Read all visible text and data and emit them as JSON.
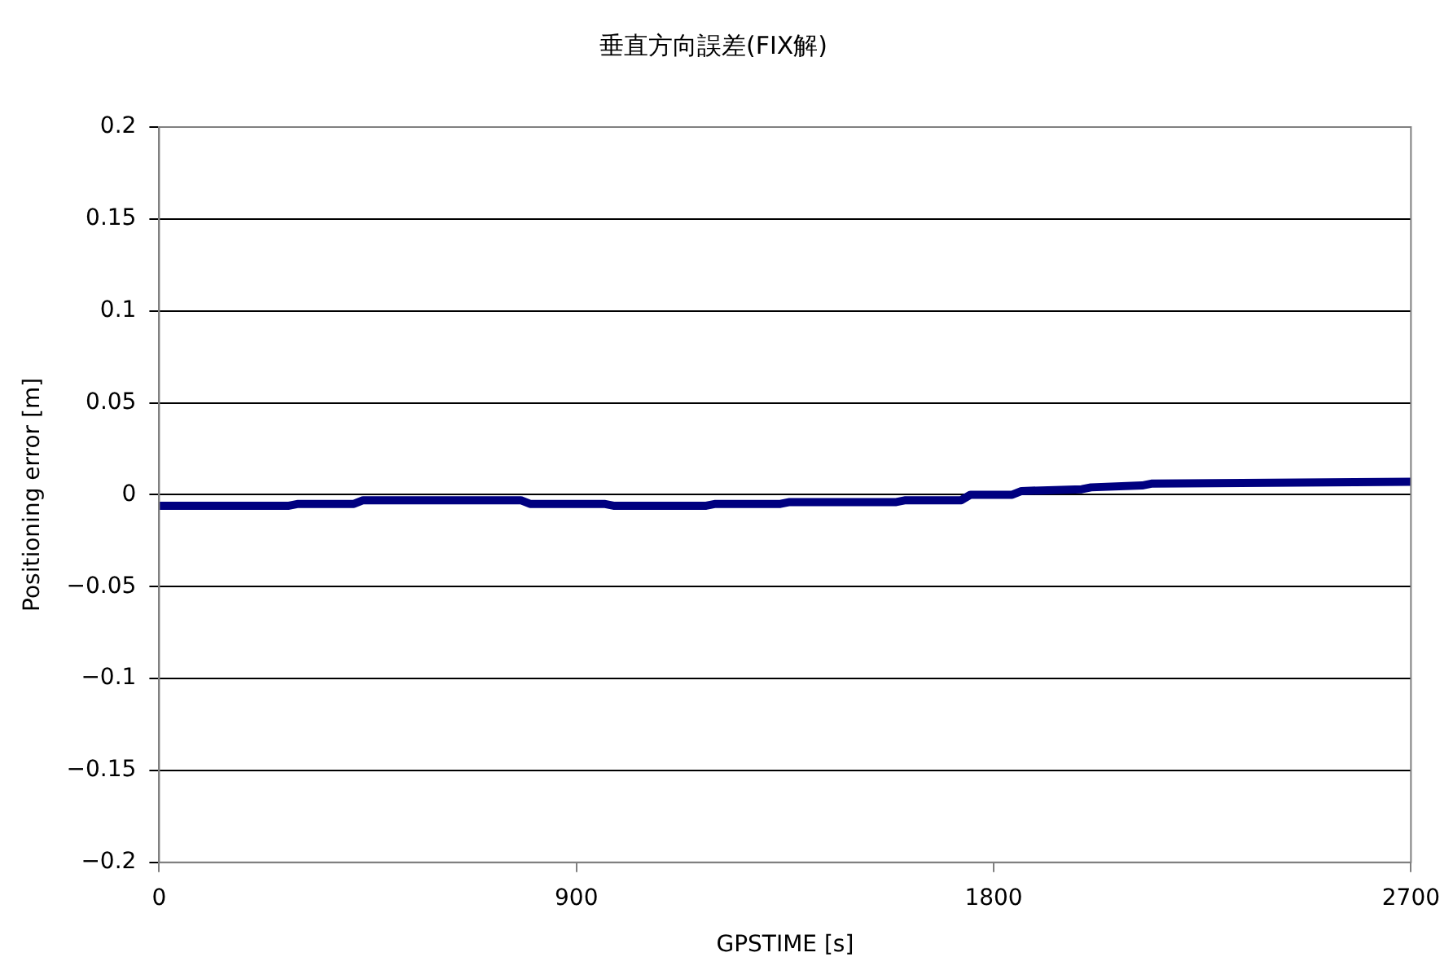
{
  "chart_data": {
    "type": "line",
    "title": "垂直方向誤差(FIX解)",
    "xlabel": "GPSTIME [s]",
    "ylabel": "Positioning error [m]",
    "xlim": [
      0,
      2700
    ],
    "xticks": [
      0,
      900,
      1800,
      2700
    ],
    "ylim": [
      -0.2,
      0.2
    ],
    "yticks": [
      -0.2,
      -0.15,
      -0.1,
      -0.05,
      0,
      0.05,
      0.1,
      0.15,
      0.2
    ],
    "grid": "y",
    "marker": "none",
    "series": [
      {
        "color": "#000080",
        "x": [
          0,
          280,
          300,
          420,
          440,
          780,
          800,
          960,
          980,
          1180,
          1200,
          1340,
          1360,
          1590,
          1610,
          1730,
          1750,
          1840,
          1860,
          1990,
          2010,
          2120,
          2140,
          2700
        ],
        "values": [
          -0.006,
          -0.006,
          -0.005,
          -0.005,
          -0.003,
          -0.003,
          -0.005,
          -0.005,
          -0.006,
          -0.006,
          -0.005,
          -0.005,
          -0.004,
          -0.004,
          -0.003,
          -0.003,
          0,
          0,
          0.002,
          0.003,
          0.004,
          0.005,
          0.006,
          0.007
        ]
      }
    ]
  }
}
